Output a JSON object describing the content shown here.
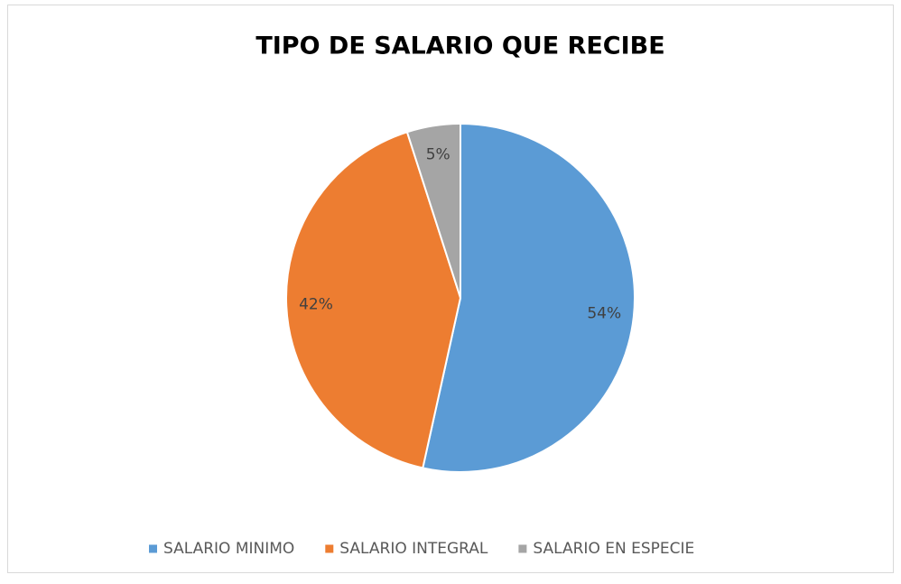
{
  "chart_data": {
    "type": "pie",
    "title": "TIPO DE SALARIO QUE RECIBE",
    "categories": [
      "SALARIO MINIMO",
      "SALARIO INTEGRAL",
      "SALARIO EN ESPECIE"
    ],
    "values": [
      54,
      42,
      5
    ],
    "value_labels": [
      "54%",
      "42%",
      "5%"
    ],
    "colors": [
      "#5b9bd5",
      "#ed7d31",
      "#a5a5a5"
    ],
    "legend": "bottom"
  }
}
